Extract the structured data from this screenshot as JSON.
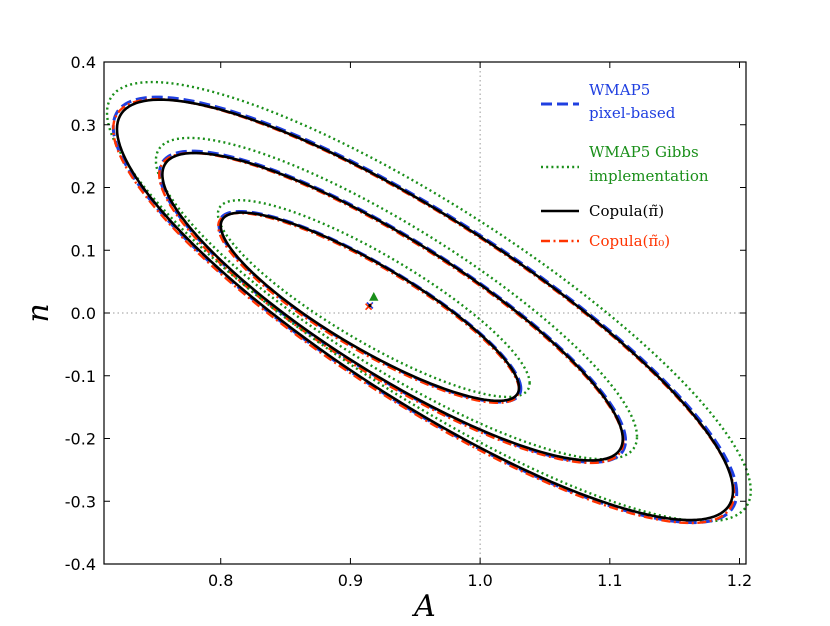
{
  "chart_data": {
    "type": "line",
    "title": "",
    "xlabel": "A",
    "ylabel": "n",
    "xlim": [
      0.71,
      1.205
    ],
    "ylim": [
      -0.4,
      0.4
    ],
    "xticks": [
      "0.8",
      "0.9",
      "1.0",
      "1.1",
      "1.2"
    ],
    "xtick_values": [
      0.8,
      0.9,
      1.0,
      1.1,
      1.2
    ],
    "yticks": [
      "0.4",
      "0.3",
      "0.2",
      "0.1",
      "0.0",
      "-0.1",
      "-0.2",
      "-0.3",
      "-0.4"
    ],
    "ytick_values": [
      0.4,
      0.3,
      0.2,
      0.1,
      0.0,
      -0.1,
      -0.2,
      -0.3,
      -0.4
    ],
    "grid": false,
    "reference_lines": {
      "x": 1.0,
      "y": 0.0
    },
    "legend_position": "top-right",
    "legend": [
      {
        "lines": [
          "WMAP5",
          "pixel-based"
        ],
        "color": "#1f3fe0",
        "style": "dashed"
      },
      {
        "lines": [
          "WMAP5 Gibbs",
          "implementation"
        ],
        "color": "#1a8f1a",
        "style": "dotted"
      },
      {
        "lines": [
          "Copula(π̃)"
        ],
        "color": "#000000",
        "style": "solid"
      },
      {
        "lines": [
          "Copula(π̃₀)"
        ],
        "color": "#ff3300",
        "style": "dashdot"
      }
    ],
    "contour_levels": [
      {
        "level": "inner",
        "center": [
          0.915,
          0.012
        ],
        "extent_A": [
          0.8,
          1.03
        ],
        "extent_n": [
          -0.14,
          0.16
        ]
      },
      {
        "level": "middle",
        "center": [
          0.915,
          0.012
        ],
        "extent_A": [
          0.755,
          1.11
        ],
        "extent_n": [
          -0.235,
          0.255
        ]
      },
      {
        "level": "outer",
        "center": [
          0.915,
          0.012
        ],
        "extent_A": [
          0.72,
          1.195
        ],
        "extent_n": [
          -0.33,
          0.34
        ]
      }
    ],
    "series": [
      {
        "name": "WMAP5 pixel-based",
        "color": "#1f3fe0",
        "style": "dashed",
        "center": [
          0.915,
          0.012
        ],
        "scale": 1.012
      },
      {
        "name": "WMAP5 Gibbs implementation",
        "color": "#1a8f1a",
        "style": "dotted",
        "center": [
          0.918,
          0.025
        ],
        "scale": 1.045
      },
      {
        "name": "Copula(π̃)",
        "color": "#000000",
        "style": "solid",
        "center": [
          0.915,
          0.012
        ],
        "scale": 1.0
      },
      {
        "name": "Copula(π̃₀)",
        "color": "#ff3300",
        "style": "dashdot",
        "center": [
          0.914,
          0.01
        ],
        "scale": 1.008
      }
    ]
  }
}
